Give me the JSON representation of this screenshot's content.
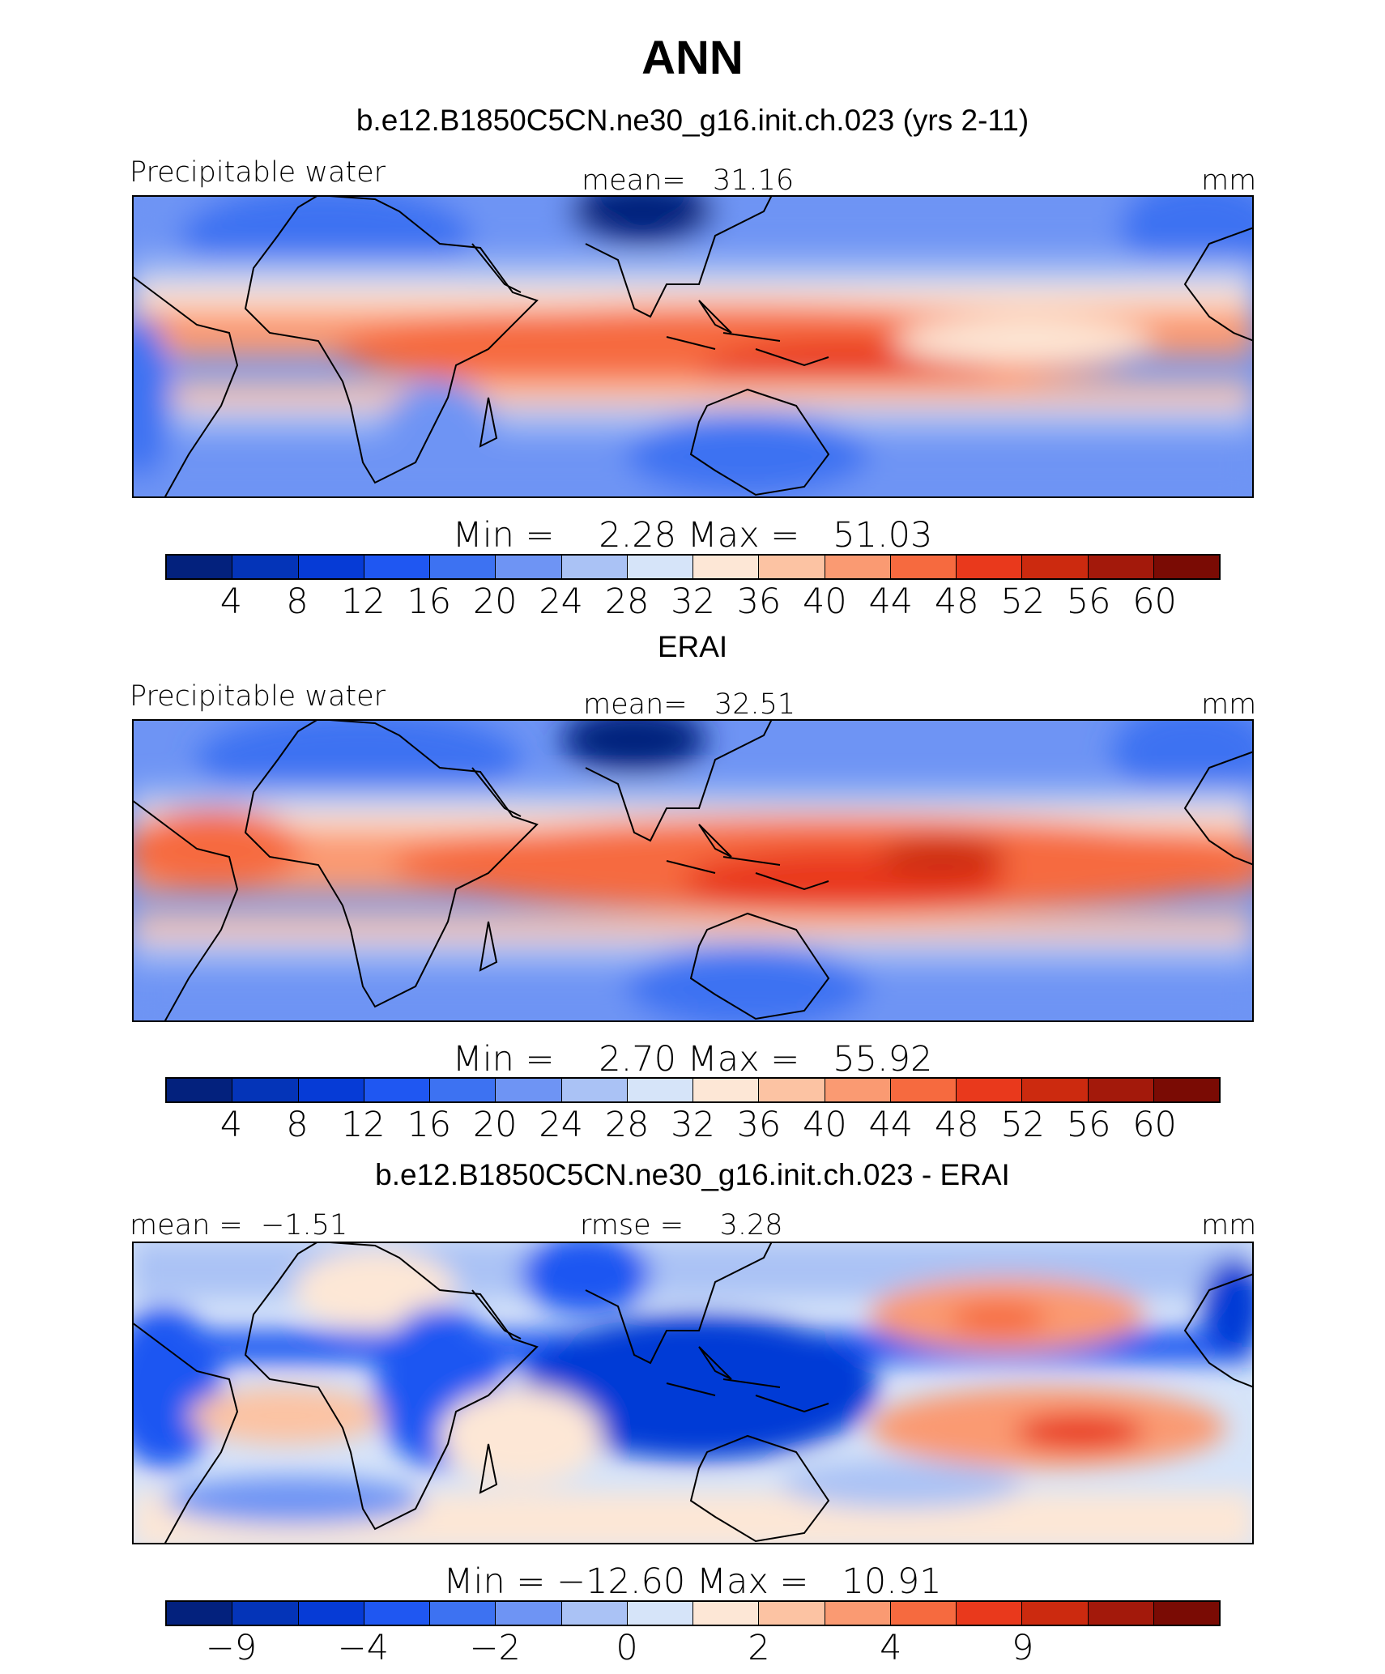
{
  "title": "ANN",
  "colors": [
    "#03217d",
    "#0434b8",
    "#063bd6",
    "#1f57f2",
    "#3d72f2",
    "#6e94f4",
    "#aac2f5",
    "#d6e4f9",
    "#fde7d6",
    "#fcc3a3",
    "#fa9a72",
    "#f66a3f",
    "#e9391c",
    "#cc2a0f",
    "#a3190b",
    "#7a0b04"
  ],
  "panels": [
    {
      "subtitle": "b.e12.B1850C5CN.ne30_g16.init.ch.023 (yrs 2-11)",
      "left_label": "Precipitable water",
      "center_label": "mean=   31.16",
      "right_label": "mm",
      "minmax": "Min =    2.28 Max =   51.03",
      "ticks": [
        "4",
        "8",
        "12",
        "16",
        "20",
        "24",
        "28",
        "32",
        "36",
        "40",
        "44",
        "48",
        "52",
        "56",
        "60"
      ]
    },
    {
      "subtitle": "ERAI",
      "left_label": "Precipitable water",
      "center_label": "mean=   32.51",
      "right_label": "mm",
      "minmax": "Min =    2.70 Max =   55.92",
      "ticks": [
        "4",
        "8",
        "12",
        "16",
        "20",
        "24",
        "28",
        "32",
        "36",
        "40",
        "44",
        "48",
        "52",
        "56",
        "60"
      ]
    },
    {
      "subtitle": "b.e12.B1850C5CN.ne30_g16.init.ch.023 - ERAI",
      "left_label": "mean =  −1.51",
      "center_label": "rmse =    3.28",
      "right_label": "mm",
      "minmax": "Min = −12.60 Max =   10.91",
      "ticks": [
        "−9",
        "",
        "−4",
        "",
        "−2",
        "",
        "0",
        "",
        "2",
        "",
        "4",
        "",
        "9",
        "",
        "",
        ""
      ]
    }
  ]
}
